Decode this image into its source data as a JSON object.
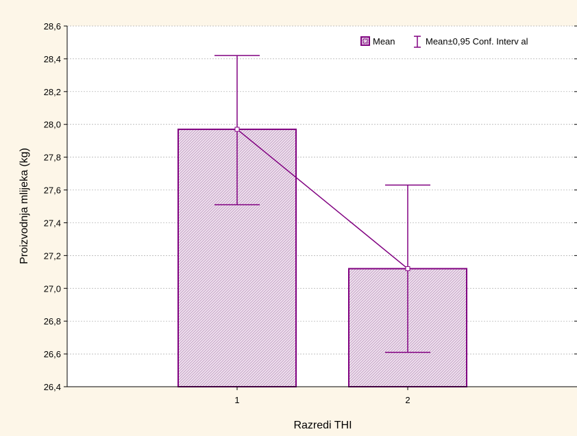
{
  "chart_data": {
    "type": "bar",
    "categories": [
      "1",
      "2"
    ],
    "series": [
      {
        "values": [
          27.97,
          27.12
        ],
        "ci_lower": [
          27.51,
          26.61
        ],
        "ci_upper": [
          28.42,
          27.63
        ]
      }
    ],
    "xlabel": "Razredi THI",
    "ylabel": "Proizvodnja mlijeka (kg)",
    "ylim": [
      26.4,
      28.6
    ],
    "yticks": [
      "26,4",
      "26,6",
      "26,8",
      "27,0",
      "27,2",
      "27,4",
      "27,6",
      "27,8",
      "28,0",
      "28,2",
      "28,4",
      "28,6"
    ],
    "grid": true,
    "legend": {
      "placement": "top-right",
      "entries": [
        "Mean",
        "Mean±0,95 Conf. Interv al"
      ]
    },
    "colors": {
      "series": "#800080",
      "fill": "#ead7ea",
      "background": "#fdf6e8",
      "grid": "#aaaaaa"
    }
  }
}
